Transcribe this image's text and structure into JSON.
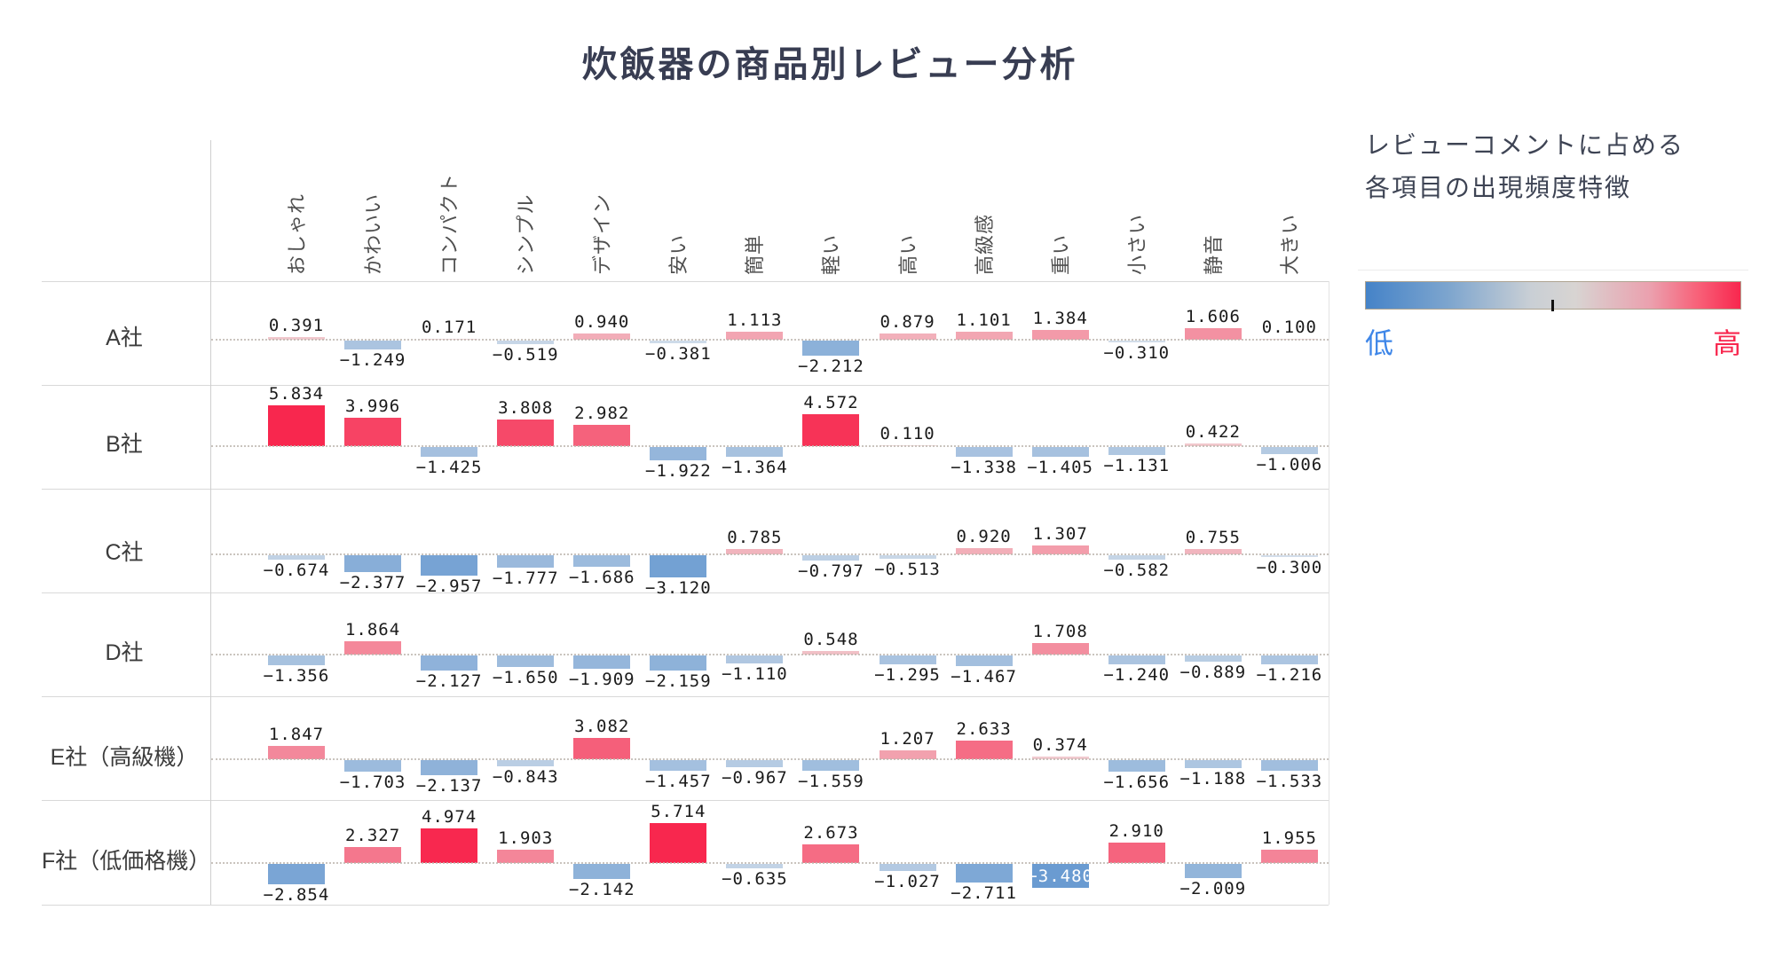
{
  "title": "炊飯器の商品別レビュー分析",
  "legend": {
    "title_line1": "レビューコメントに占める",
    "title_line2": "各項目の出現頻度特徴",
    "low_label": "低",
    "high_label": "高",
    "low_color": "#4583C8",
    "high_color": "#F8274E",
    "low_text_color": "#3E86E8",
    "high_text_color": "#F8274E"
  },
  "chart_data": {
    "type": "bar",
    "subtype": "small-multiple diverging bars with heatmap coloring",
    "title": "炊飯器の商品別レビュー分析",
    "colorbar_label": "レビューコメントに占める各項目の出現頻度特徴",
    "colorbar": {
      "low": "低",
      "high": "高",
      "low_color": "#4583C8",
      "high_color": "#F8274E"
    },
    "zero_line": "dotted",
    "value_format": "0.000",
    "categories": [
      "おしゃれ",
      "かわいい",
      "コンパクト",
      "シンプル",
      "デザイン",
      "安い",
      "簡単",
      "軽い",
      "高い",
      "高級感",
      "重い",
      "小さい",
      "静音",
      "大きい"
    ],
    "series": [
      {
        "name": "A社",
        "values": [
          0.391,
          -1.249,
          0.171,
          -0.519,
          0.94,
          -0.381,
          1.113,
          -2.212,
          0.879,
          1.101,
          1.384,
          -0.31,
          1.606,
          0.1
        ]
      },
      {
        "name": "B社",
        "values": [
          5.834,
          3.996,
          -1.425,
          3.808,
          2.982,
          -1.922,
          -1.364,
          4.572,
          0.11,
          -1.338,
          -1.405,
          -1.131,
          0.422,
          -1.006
        ]
      },
      {
        "name": "C社",
        "values": [
          -0.674,
          -2.377,
          -2.957,
          -1.777,
          -1.686,
          -3.12,
          0.785,
          -0.797,
          -0.513,
          0.92,
          1.307,
          -0.582,
          0.755,
          -0.3
        ]
      },
      {
        "name": "D社",
        "values": [
          -1.356,
          1.864,
          -2.127,
          -1.65,
          -1.909,
          -2.159,
          -1.11,
          0.548,
          -1.295,
          -1.467,
          1.708,
          -1.24,
          -0.889,
          -1.216
        ]
      },
      {
        "name": "E社（高級機）",
        "values": [
          1.847,
          -1.703,
          -2.137,
          -0.843,
          3.082,
          -1.457,
          -0.967,
          -1.559,
          1.207,
          2.633,
          0.374,
          -1.656,
          -1.188,
          -1.533
        ]
      },
      {
        "name": "F社（低価格機）",
        "values": [
          -2.854,
          2.327,
          4.974,
          1.903,
          -2.142,
          5.714,
          -0.635,
          2.673,
          -1.027,
          -2.711,
          -3.48,
          2.91,
          -2.009,
          1.955
        ]
      }
    ]
  }
}
